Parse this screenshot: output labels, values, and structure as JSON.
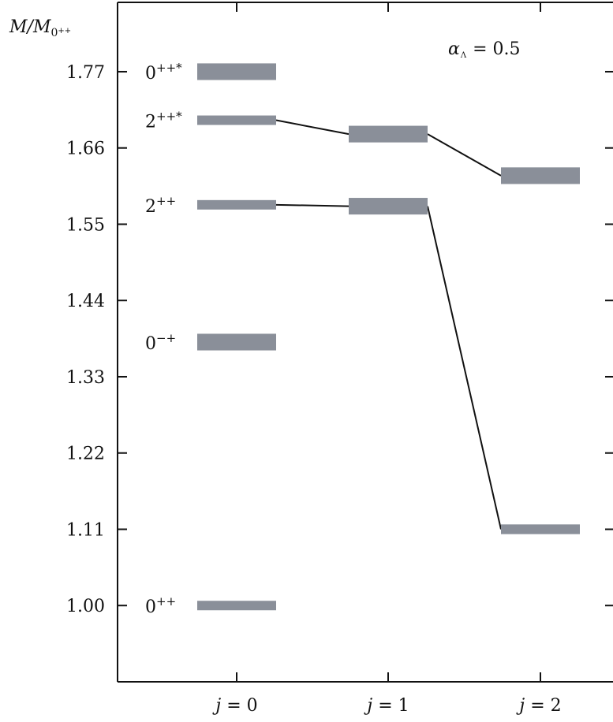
{
  "chart_data": {
    "type": "bar",
    "title": "",
    "xlabel": "",
    "ylabel": {
      "main": "M/M",
      "sub": "0",
      "sup": "++"
    },
    "annotation": {
      "symbol": "α",
      "subscript": "Λ",
      "text": "= 0.5"
    },
    "categories": [
      "j = 0",
      "j = 1",
      "j = 2"
    ],
    "x_ticks": [
      {
        "var": "j",
        "text": " = 0"
      },
      {
        "var": "j",
        "text": " = 1"
      },
      {
        "var": "j",
        "text": " = 2"
      }
    ],
    "ylim": [
      0.89,
      1.87
    ],
    "yticks": [
      1.0,
      1.11,
      1.22,
      1.33,
      1.44,
      1.55,
      1.66,
      1.77
    ],
    "ytick_labels": [
      "1.00",
      "1.11",
      "1.22",
      "1.33",
      "1.44",
      "1.55",
      "1.66",
      "1.77"
    ],
    "grid": false,
    "levels": [
      {
        "category": "j = 0",
        "state": "0++",
        "label_base": "0",
        "label_sup": "++",
        "value": 1.0,
        "uncertainty": 0.006
      },
      {
        "category": "j = 0",
        "state": "0-+",
        "label_base": "0",
        "label_sup": "−+",
        "value": 1.38,
        "uncertainty": 0.012
      },
      {
        "category": "j = 0",
        "state": "2++",
        "label_base": "2",
        "label_sup": "++",
        "value": 1.578,
        "uncertainty": 0.006
      },
      {
        "category": "j = 0",
        "state": "2++*",
        "label_base": "2",
        "label_sup": "++*",
        "value": 1.7,
        "uncertainty": 0.006
      },
      {
        "category": "j = 0",
        "state": "0++*",
        "label_base": "0",
        "label_sup": "++*",
        "value": 1.77,
        "uncertainty": 0.012
      },
      {
        "category": "j = 1",
        "state": "2++*",
        "label_base": "",
        "label_sup": "",
        "value": 1.68,
        "uncertainty": 0.012
      },
      {
        "category": "j = 1",
        "state": "2++",
        "label_base": "",
        "label_sup": "",
        "value": 1.576,
        "uncertainty": 0.012
      },
      {
        "category": "j = 2",
        "state": "2++*",
        "label_base": "",
        "label_sup": "",
        "value": 1.62,
        "uncertainty": 0.012
      },
      {
        "category": "j = 2",
        "state": "2++",
        "label_base": "",
        "label_sup": "",
        "value": 1.11,
        "uncertainty": 0.007
      }
    ],
    "connections": [
      {
        "series": "2++*",
        "points": [
          {
            "category": "j = 0",
            "value": 1.7
          },
          {
            "category": "j = 1",
            "value": 1.68
          },
          {
            "category": "j = 2",
            "value": 1.62
          }
        ]
      },
      {
        "series": "2++",
        "points": [
          {
            "category": "j = 0",
            "value": 1.578
          },
          {
            "category": "j = 1",
            "value": 1.576
          },
          {
            "category": "j = 2",
            "value": 1.11
          }
        ]
      }
    ],
    "colors": {
      "level": "#8a8f99",
      "line": "#111111",
      "axis": "#111111"
    }
  }
}
